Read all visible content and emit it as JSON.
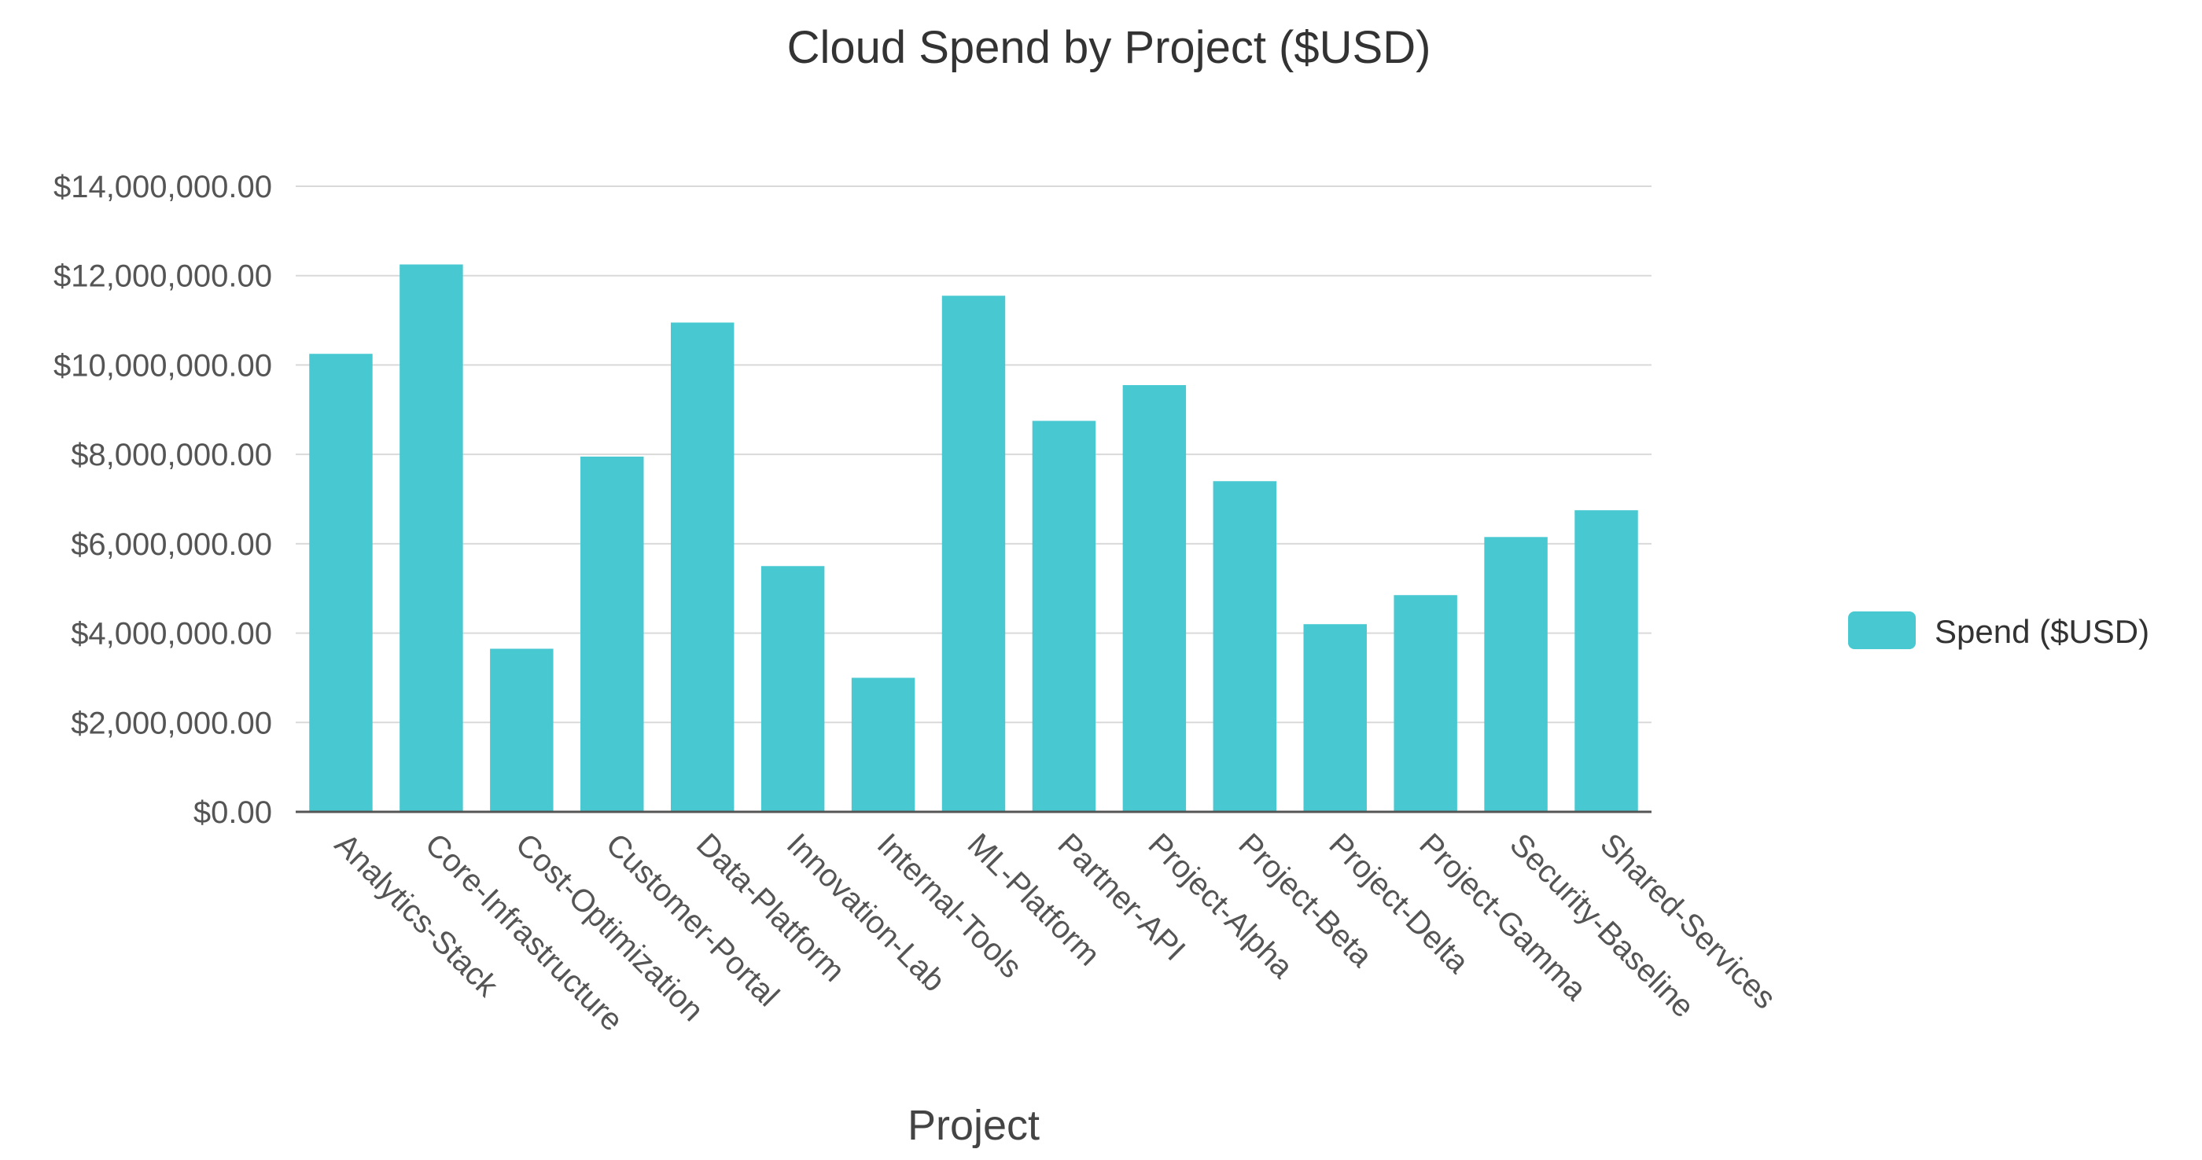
{
  "chart_data": {
    "type": "bar",
    "title": "Cloud Spend by Project ($USD)",
    "xlabel": "Project",
    "ylabel": "",
    "ylim": [
      0,
      14000000
    ],
    "y_ticks": [
      "$0.00",
      "$2,000,000.00",
      "$4,000,000.00",
      "$6,000,000.00",
      "$8,000,000.00",
      "$10,000,000.00",
      "$12,000,000.00",
      "$14,000,000.00"
    ],
    "y_tick_values": [
      0,
      2000000,
      4000000,
      6000000,
      8000000,
      10000000,
      12000000,
      14000000
    ],
    "categories": [
      "Analytics-Stack",
      "Core-Infrastructure",
      "Cost-Optimization",
      "Customer-Portal",
      "Data-Platform",
      "Innovation-Lab",
      "Internal-Tools",
      "ML-Platform",
      "Partner-API",
      "Project-Alpha",
      "Project-Beta",
      "Project-Delta",
      "Project-Gamma",
      "Security-Baseline",
      "Shared-Services"
    ],
    "series": [
      {
        "name": "Spend ($USD)",
        "color": "#48c9d1",
        "values": [
          10250000,
          12250000,
          3650000,
          7950000,
          10950000,
          5500000,
          3000000,
          11550000,
          8750000,
          9550000,
          7400000,
          4200000,
          4850000,
          6150000,
          6750000
        ]
      }
    ],
    "grid": true,
    "legend_position": "right"
  }
}
